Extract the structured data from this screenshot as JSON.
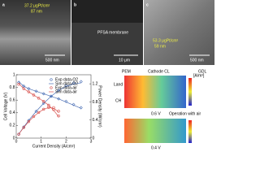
{
  "panels": [
    {
      "label": "a",
      "loading": "37.2 μgPt/cm²",
      "thickness": "87 nm",
      "scale": "500 nm"
    },
    {
      "label": "b",
      "membrane": "PFSA membrane",
      "scale": "10 μm"
    },
    {
      "label": "c",
      "loading": "53.3 μgPt/cm²",
      "thickness": "59 nm",
      "scale": "500 nm"
    }
  ],
  "chart_data": {
    "type": "line",
    "xlabel": "Current Density (A/cm²)",
    "ylabel": "Cell Voltage (V)",
    "y2label": "Power Density (W/cm²)",
    "xlim": [
      0,
      3
    ],
    "xticks": [
      0,
      1,
      2,
      3
    ],
    "ylim": [
      0,
      1
    ],
    "yticks": [
      0,
      0.2,
      0.4,
      0.6,
      0.8,
      1
    ],
    "y2lim": [
      0,
      1.4
    ],
    "y2ticks": [
      0,
      0.4,
      0.8,
      1.2
    ],
    "series": [
      {
        "name": "Exp data-O2",
        "color": "#4a6fb5",
        "style": "marker",
        "x": [
          0.1,
          0.3,
          0.5,
          0.8,
          1.1,
          1.4,
          1.7,
          2,
          2.3,
          2.6
        ],
        "values": [
          0.88,
          0.82,
          0.78,
          0.74,
          0.7,
          0.66,
          0.62,
          0.58,
          0.53,
          0.48
        ],
        "power": [
          0.088,
          0.246,
          0.39,
          0.592,
          0.77,
          0.924,
          1.054,
          1.16,
          1.219,
          1.248
        ]
      },
      {
        "name": "Sim data-O2",
        "color": "#4a6fb5",
        "style": "line",
        "x": [
          0.1,
          0.3,
          0.5,
          0.8,
          1.1,
          1.4,
          1.7,
          2,
          2.3,
          2.6
        ],
        "values": [
          0.89,
          0.82,
          0.78,
          0.74,
          0.7,
          0.66,
          0.62,
          0.57,
          0.52,
          0.47
        ],
        "power": [
          0.089,
          0.246,
          0.39,
          0.592,
          0.77,
          0.924,
          1.054,
          1.14,
          1.196,
          1.222
        ]
      },
      {
        "name": "Exp data-air",
        "color": "#d9534f",
        "style": "marker",
        "x": [
          0.1,
          0.3,
          0.5,
          0.7,
          0.9,
          1.1,
          1.3,
          1.5,
          1.7
        ],
        "values": [
          0.85,
          0.78,
          0.73,
          0.68,
          0.63,
          0.58,
          0.52,
          0.45,
          0.35
        ],
        "power": [
          0.085,
          0.234,
          0.365,
          0.476,
          0.567,
          0.638,
          0.676,
          0.675,
          0.595
        ]
      },
      {
        "name": "Sim data-air",
        "color": "#d9534f",
        "style": "line",
        "x": [
          0.1,
          0.3,
          0.5,
          0.7,
          0.9,
          1.1,
          1.3,
          1.5,
          1.7
        ],
        "values": [
          0.86,
          0.78,
          0.73,
          0.68,
          0.63,
          0.58,
          0.52,
          0.44,
          0.34
        ],
        "power": [
          0.086,
          0.234,
          0.365,
          0.476,
          0.567,
          0.638,
          0.676,
          0.66,
          0.578
        ]
      }
    ]
  },
  "contour": {
    "pem": "PEM",
    "cathode": "Cathode CL",
    "gdl": "GDL",
    "land": "Land",
    "channel": "CH",
    "unit": "[A/m³]",
    "v1": "0.6 V",
    "mode": "Operation with air",
    "v2": "0.4 V"
  }
}
